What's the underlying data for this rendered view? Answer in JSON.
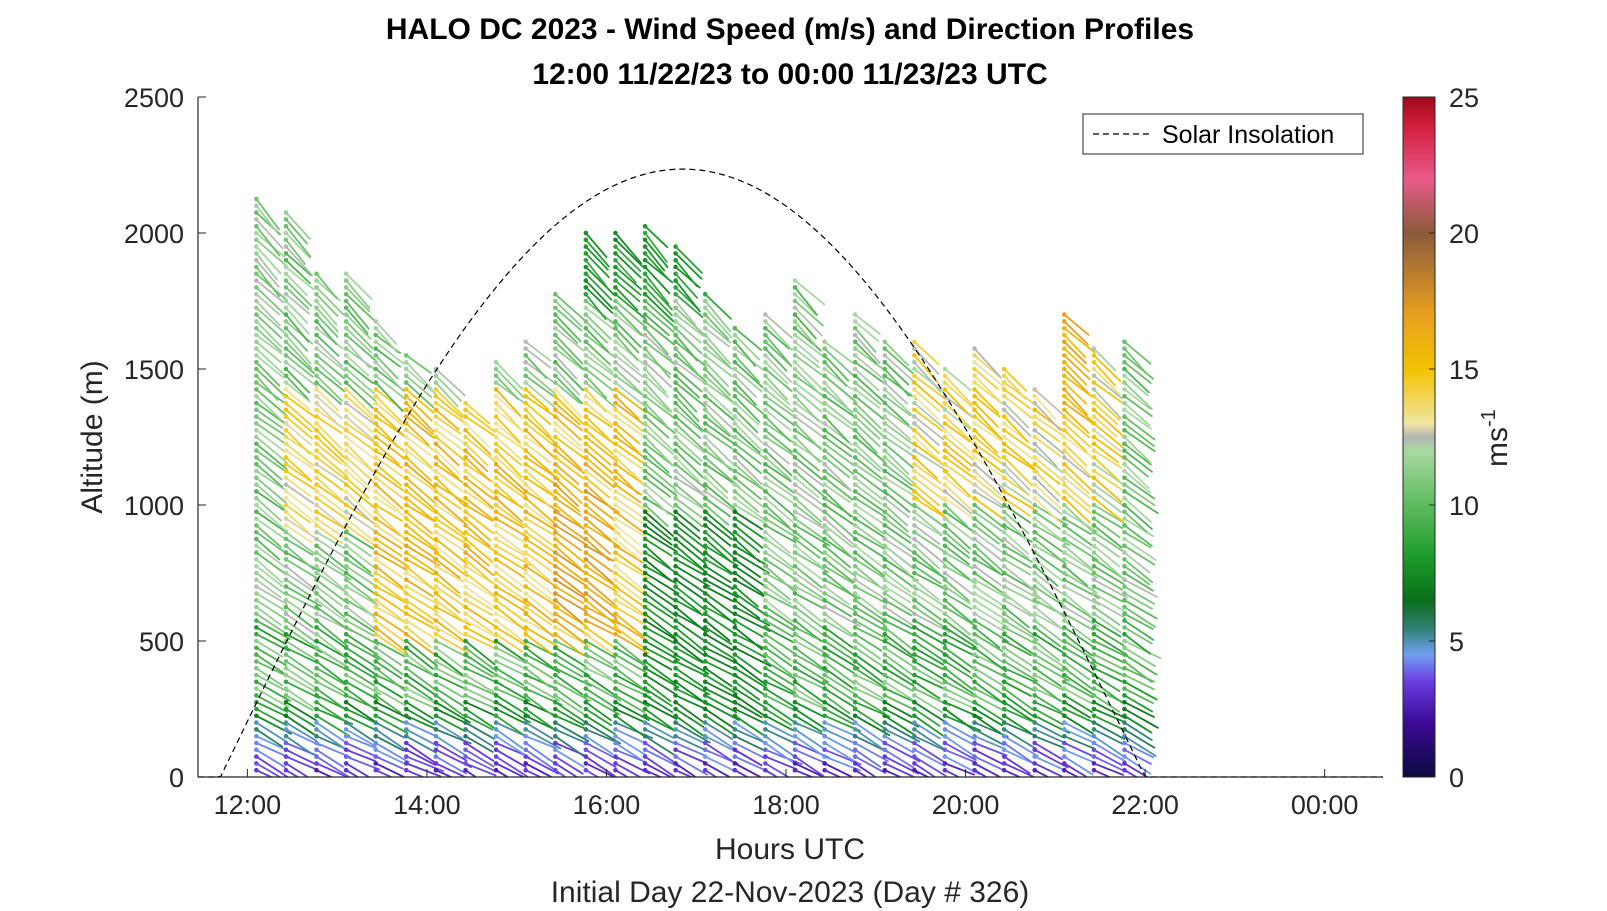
{
  "chart_data": {
    "type": "barb-profile",
    "title": "HALO DC 2023 - Wind Speed (m/s) and Direction Profiles",
    "subtitle": "12:00 11/22/23 to 00:00 11/23/23  UTC",
    "xlabel": "Hours UTC",
    "xlabel2": "Initial Day 22-Nov-2023 (Day # 326)",
    "ylabel": "Altitude (m)",
    "xlim": [
      11.45,
      24.65
    ],
    "ylim": [
      0,
      2500
    ],
    "x_ticks": [
      12,
      14,
      16,
      18,
      20,
      22,
      24
    ],
    "x_tick_labels": [
      "12:00",
      "14:00",
      "16:00",
      "18:00",
      "20:00",
      "22:00",
      "00:00"
    ],
    "y_ticks": [
      0,
      500,
      1000,
      1500,
      2000,
      2500
    ],
    "y_tick_labels": [
      "0",
      "500",
      "1000",
      "1500",
      "2000",
      "2500"
    ],
    "legend": {
      "position": "top-right",
      "entries": [
        "Solar Insolation"
      ]
    },
    "colorbar": {
      "label": "ms",
      "label_exponent": "-1",
      "range": [
        0,
        25
      ],
      "ticks": [
        0,
        5,
        10,
        15,
        20,
        25
      ],
      "tick_labels": [
        "0",
        "5",
        "10",
        "15",
        "20",
        "25"
      ],
      "stops": [
        {
          "v": 0,
          "color": "#0a0a40"
        },
        {
          "v": 2,
          "color": "#3c0a96"
        },
        {
          "v": 3.5,
          "color": "#6a3ce0"
        },
        {
          "v": 4.5,
          "color": "#6fa0f0"
        },
        {
          "v": 5.5,
          "color": "#2f7f6f"
        },
        {
          "v": 6.5,
          "color": "#0a6e1a"
        },
        {
          "v": 8,
          "color": "#1a9a2a"
        },
        {
          "v": 10,
          "color": "#5dbb5d"
        },
        {
          "v": 12,
          "color": "#a9d9a3"
        },
        {
          "v": 12.5,
          "color": "#b4b4b4"
        },
        {
          "v": 13,
          "color": "#f0e6a0"
        },
        {
          "v": 15,
          "color": "#f2c200"
        },
        {
          "v": 17,
          "color": "#e8a020"
        },
        {
          "v": 20,
          "color": "#8a5a3a"
        },
        {
          "v": 22,
          "color": "#e85a8a"
        },
        {
          "v": 24,
          "color": "#d01c3a"
        },
        {
          "v": 25,
          "color": "#9a0a1a"
        }
      ]
    },
    "solar_insolation": {
      "style": "dashed",
      "sunrise": 11.7,
      "sunset": 22.0,
      "peak_time": 16.85,
      "peak_value": 2235
    },
    "profiles": {
      "times": [
        12.1,
        12.43,
        12.77,
        13.1,
        13.43,
        13.77,
        14.1,
        14.43,
        14.77,
        15.1,
        15.43,
        15.77,
        16.1,
        16.43,
        16.77,
        17.1,
        17.43,
        17.77,
        18.1,
        18.43,
        18.77,
        19.1,
        19.43,
        19.77,
        20.1,
        20.43,
        20.77,
        21.1,
        21.43,
        21.77
      ],
      "top_altitudes": [
        2130,
        2090,
        1850,
        1850,
        1680,
        1560,
        1520,
        1380,
        1530,
        1600,
        1790,
        2000,
        2000,
        2040,
        1970,
        1790,
        1660,
        1720,
        1830,
        1600,
        1700,
        1610,
        1610,
        1520,
        1580,
        1520,
        1430,
        1700,
        1580,
        1600
      ],
      "sample_spacing_m": 25
    }
  }
}
